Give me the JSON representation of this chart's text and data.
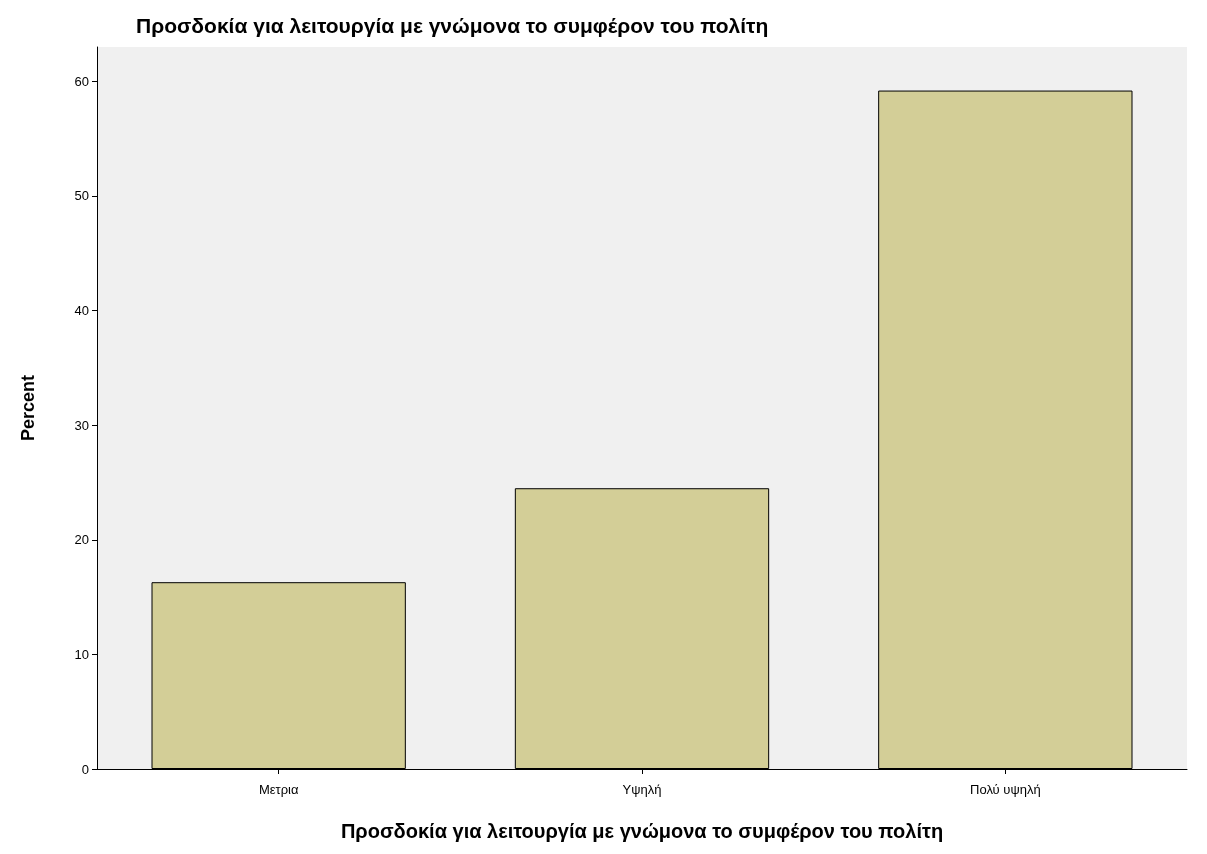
{
  "chart_data": {
    "type": "bar",
    "title": "Προσδοκία για λειτουργία με γνώμονα το συμφέρον του πολίτη",
    "xlabel": "Προσδοκία για λειτουργία με γνώμονα το συμφέρον του πολίτη",
    "ylabel": "Percent",
    "categories": [
      "Μετρια",
      "Υψηλή",
      "Πολύ υψηλή"
    ],
    "values": [
      16.3,
      24.5,
      59.2
    ],
    "color": "#d3ce97",
    "ylim": [
      0,
      63
    ],
    "yticks": [
      0,
      10,
      20,
      30,
      40,
      50,
      60
    ],
    "grid": false
  }
}
